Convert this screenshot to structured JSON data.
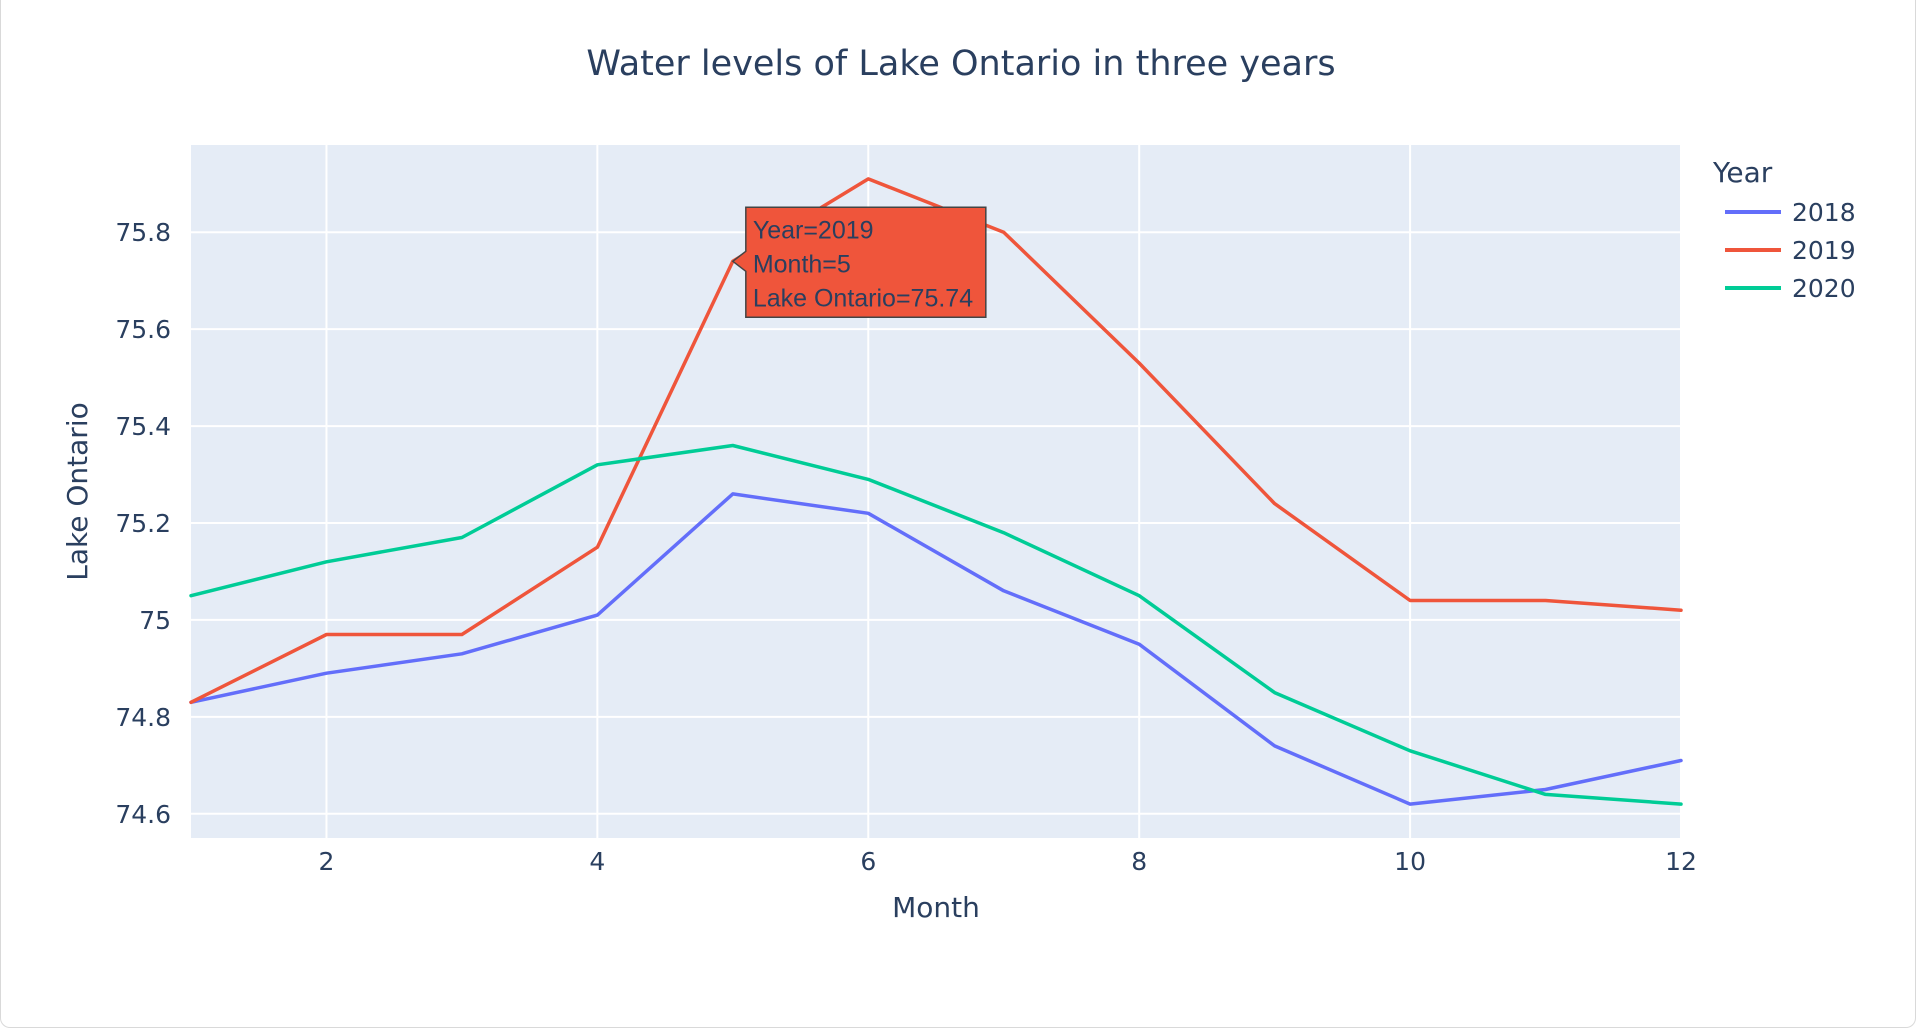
{
  "chart_data": {
    "type": "line",
    "title": "Water levels of Lake Ontario in three years",
    "xlabel": "Month",
    "ylabel": "Lake Ontario",
    "xlim": [
      1,
      12
    ],
    "ylim": [
      74.55,
      75.98
    ],
    "x_ticks": [
      2,
      4,
      6,
      8,
      10,
      12
    ],
    "y_ticks": [
      74.6,
      74.8,
      75,
      75.2,
      75.4,
      75.6,
      75.8
    ],
    "y_tick_labels": [
      "74.6",
      "74.8",
      "75",
      "75.2",
      "75.4",
      "75.6",
      "75.8"
    ],
    "grid": true,
    "legend_placement": "top-right",
    "legend_title": "Year",
    "x": [
      1,
      2,
      3,
      4,
      5,
      6,
      7,
      8,
      9,
      10,
      11,
      12
    ],
    "series": [
      {
        "name": "2018",
        "color": "#636efa",
        "values": [
          74.83,
          74.89,
          74.93,
          75.01,
          75.26,
          75.22,
          75.06,
          74.95,
          74.74,
          74.62,
          74.65,
          74.71
        ]
      },
      {
        "name": "2019",
        "color": "#ef553b",
        "values": [
          74.83,
          74.97,
          74.97,
          75.15,
          75.74,
          75.91,
          75.8,
          75.53,
          75.24,
          75.04,
          75.04,
          75.02
        ]
      },
      {
        "name": "2020",
        "color": "#00cc96",
        "values": [
          75.05,
          75.12,
          75.17,
          75.32,
          75.36,
          75.29,
          75.18,
          75.05,
          74.85,
          74.73,
          74.64,
          74.62
        ]
      }
    ],
    "hover": {
      "series_index": 1,
      "x": 5,
      "y": 75.74,
      "lines": [
        "Year=2019",
        "Month=5",
        "Lake Ontario=75.74"
      ]
    },
    "colors": {
      "plot_background": "#e5ecf6",
      "grid": "#ffffff",
      "text": "#2a3f5f"
    }
  }
}
